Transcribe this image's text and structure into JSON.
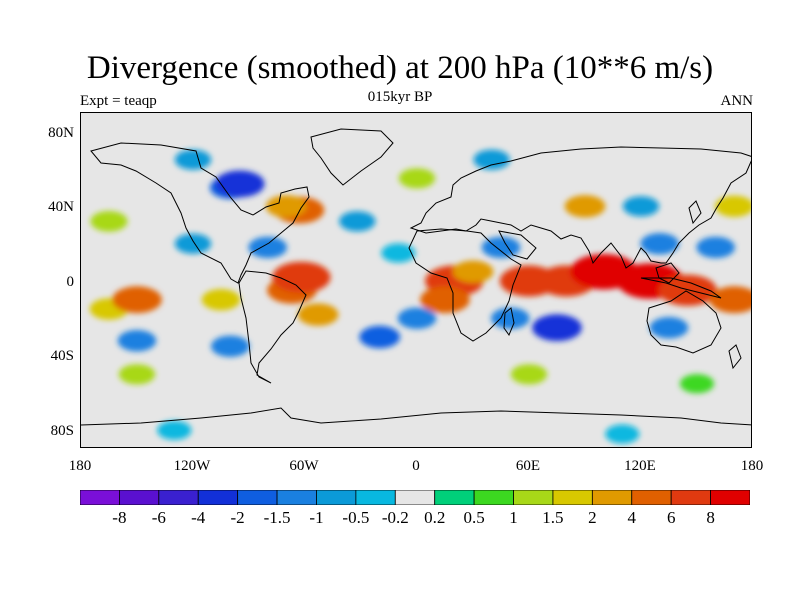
{
  "title": "Divergence (smoothed) at 200 hPa (10**6 m/s)",
  "subtitle": "015kyr BP",
  "expt_label": "Expt = teaqp",
  "season_label": "ANN",
  "axes": {
    "x_ticks": [
      "180",
      "120W",
      "60W",
      "0",
      "60E",
      "120E",
      "180"
    ],
    "y_ticks": [
      "80N",
      "40N",
      "0",
      "40S",
      "80S"
    ]
  },
  "colorbar": {
    "labels": [
      "-8",
      "-6",
      "-4",
      "-2",
      "-1.5",
      "-1",
      "-0.5",
      "-0.2",
      "0.2",
      "0.5",
      "1",
      "1.5",
      "2",
      "4",
      "6",
      "8"
    ],
    "colors": [
      "#7a0fd8",
      "#5a10d0",
      "#3a20d0",
      "#1230d8",
      "#0f5ee0",
      "#1a80e0",
      "#0b9ad8",
      "#08b8e0",
      "#e6e6e6",
      "#00d07a",
      "#3cd820",
      "#a8d818",
      "#d8c800",
      "#e09a00",
      "#e06000",
      "#e03a10",
      "#e00000"
    ]
  },
  "map": {
    "projection": "cylindrical equidistant",
    "lon_range": [
      -180,
      180
    ],
    "lat_range": [
      -90,
      90
    ],
    "continent_outlines": "black",
    "missing_color": "#e6e6e6"
  },
  "chart_data": {
    "type": "heatmap",
    "title": "Divergence (smoothed) at 200 hPa (10**6 m/s)",
    "subtitle": "015kyr BP",
    "x_ticks": [
      "180",
      "120W",
      "60W",
      "0",
      "60E",
      "120E",
      "180"
    ],
    "y_ticks": [
      "80N",
      "40N",
      "0",
      "40S",
      "80S"
    ],
    "levels": [
      -8,
      -6,
      -4,
      -2,
      -1.5,
      -1,
      -0.5,
      -0.2,
      0.2,
      0.5,
      1,
      1.5,
      2,
      4,
      6,
      8
    ],
    "features": [
      {
        "lon": -165,
        "lat": -15,
        "value": 1.5
      },
      {
        "lon": -150,
        "lat": -10,
        "value": 4
      },
      {
        "lon": -165,
        "lat": 32,
        "value": 1.2
      },
      {
        "lon": -105,
        "lat": -10,
        "value": 1.5
      },
      {
        "lon": -67,
        "lat": -5,
        "value": 4
      },
      {
        "lon": -62,
        "lat": 2,
        "value": 6
      },
      {
        "lon": -53,
        "lat": -18,
        "value": 2
      },
      {
        "lon": -100,
        "lat": 50,
        "value": -2
      },
      {
        "lon": -95,
        "lat": 52,
        "value": -4
      },
      {
        "lon": -63,
        "lat": 38,
        "value": 4
      },
      {
        "lon": -70,
        "lat": 40,
        "value": 2
      },
      {
        "lon": -32,
        "lat": 32,
        "value": -1
      },
      {
        "lon": -80,
        "lat": 18,
        "value": -1.5
      },
      {
        "lon": -120,
        "lat": 20,
        "value": -1
      },
      {
        "lon": -150,
        "lat": -32,
        "value": -1.5
      },
      {
        "lon": -100,
        "lat": -35,
        "value": -1.5
      },
      {
        "lon": 20,
        "lat": 0,
        "value": 6
      },
      {
        "lon": 15,
        "lat": -10,
        "value": 4
      },
      {
        "lon": 30,
        "lat": 5,
        "value": 2
      },
      {
        "lon": 60,
        "lat": 0,
        "value": 6
      },
      {
        "lon": 80,
        "lat": 0,
        "value": 6
      },
      {
        "lon": 100,
        "lat": 5,
        "value": 8
      },
      {
        "lon": 125,
        "lat": 0,
        "value": 8
      },
      {
        "lon": 145,
        "lat": -5,
        "value": 6
      },
      {
        "lon": 170,
        "lat": -10,
        "value": 4
      },
      {
        "lon": 130,
        "lat": 20,
        "value": -1.5
      },
      {
        "lon": 160,
        "lat": 18,
        "value": -1.5
      },
      {
        "lon": 45,
        "lat": 18,
        "value": -1.5
      },
      {
        "lon": 75,
        "lat": -25,
        "value": -4
      },
      {
        "lon": 50,
        "lat": -20,
        "value": -1.5
      },
      {
        "lon": 135,
        "lat": -25,
        "value": -1.5
      },
      {
        "lon": -20,
        "lat": -30,
        "value": -2
      },
      {
        "lon": 0,
        "lat": -20,
        "value": -1.5
      },
      {
        "lon": -10,
        "lat": 15,
        "value": -0.5
      },
      {
        "lon": 90,
        "lat": 40,
        "value": 2
      },
      {
        "lon": 120,
        "lat": 40,
        "value": -1
      },
      {
        "lon": 170,
        "lat": 40,
        "value": 1.5
      },
      {
        "lon": -120,
        "lat": 65,
        "value": -1
      },
      {
        "lon": 40,
        "lat": 65,
        "value": -1
      },
      {
        "lon": 0,
        "lat": 55,
        "value": 1
      },
      {
        "lon": 60,
        "lat": -50,
        "value": 1
      },
      {
        "lon": -150,
        "lat": -50,
        "value": 1
      },
      {
        "lon": 150,
        "lat": -55,
        "value": 0.5
      },
      {
        "lon": -130,
        "lat": -80,
        "value": -0.5
      },
      {
        "lon": 110,
        "lat": -82,
        "value": -0.5
      }
    ]
  }
}
